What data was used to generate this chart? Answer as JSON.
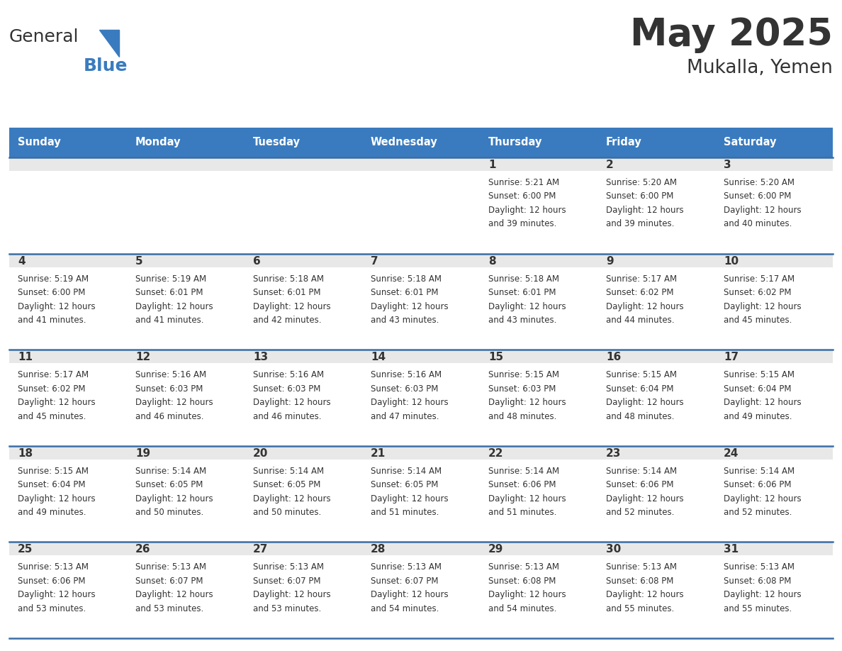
{
  "title": "May 2025",
  "subtitle": "Mukalla, Yemen",
  "days_of_week": [
    "Sunday",
    "Monday",
    "Tuesday",
    "Wednesday",
    "Thursday",
    "Friday",
    "Saturday"
  ],
  "header_bg": "#3a7bbf",
  "header_text": "#ffffff",
  "row_bg_light": "#e8e8e8",
  "row_bg_white": "#ffffff",
  "cell_text": "#333333",
  "divider_color": "#3a6ea5",
  "calendar_data": [
    [
      null,
      null,
      null,
      null,
      {
        "day": 1,
        "sunrise": "5:21 AM",
        "sunset": "6:00 PM",
        "daylight": "12 hours",
        "daylight2": "and 39 minutes."
      },
      {
        "day": 2,
        "sunrise": "5:20 AM",
        "sunset": "6:00 PM",
        "daylight": "12 hours",
        "daylight2": "and 39 minutes."
      },
      {
        "day": 3,
        "sunrise": "5:20 AM",
        "sunset": "6:00 PM",
        "daylight": "12 hours",
        "daylight2": "and 40 minutes."
      }
    ],
    [
      {
        "day": 4,
        "sunrise": "5:19 AM",
        "sunset": "6:00 PM",
        "daylight": "12 hours",
        "daylight2": "and 41 minutes."
      },
      {
        "day": 5,
        "sunrise": "5:19 AM",
        "sunset": "6:01 PM",
        "daylight": "12 hours",
        "daylight2": "and 41 minutes."
      },
      {
        "day": 6,
        "sunrise": "5:18 AM",
        "sunset": "6:01 PM",
        "daylight": "12 hours",
        "daylight2": "and 42 minutes."
      },
      {
        "day": 7,
        "sunrise": "5:18 AM",
        "sunset": "6:01 PM",
        "daylight": "12 hours",
        "daylight2": "and 43 minutes."
      },
      {
        "day": 8,
        "sunrise": "5:18 AM",
        "sunset": "6:01 PM",
        "daylight": "12 hours",
        "daylight2": "and 43 minutes."
      },
      {
        "day": 9,
        "sunrise": "5:17 AM",
        "sunset": "6:02 PM",
        "daylight": "12 hours",
        "daylight2": "and 44 minutes."
      },
      {
        "day": 10,
        "sunrise": "5:17 AM",
        "sunset": "6:02 PM",
        "daylight": "12 hours",
        "daylight2": "and 45 minutes."
      }
    ],
    [
      {
        "day": 11,
        "sunrise": "5:17 AM",
        "sunset": "6:02 PM",
        "daylight": "12 hours",
        "daylight2": "and 45 minutes."
      },
      {
        "day": 12,
        "sunrise": "5:16 AM",
        "sunset": "6:03 PM",
        "daylight": "12 hours",
        "daylight2": "and 46 minutes."
      },
      {
        "day": 13,
        "sunrise": "5:16 AM",
        "sunset": "6:03 PM",
        "daylight": "12 hours",
        "daylight2": "and 46 minutes."
      },
      {
        "day": 14,
        "sunrise": "5:16 AM",
        "sunset": "6:03 PM",
        "daylight": "12 hours",
        "daylight2": "and 47 minutes."
      },
      {
        "day": 15,
        "sunrise": "5:15 AM",
        "sunset": "6:03 PM",
        "daylight": "12 hours",
        "daylight2": "and 48 minutes."
      },
      {
        "day": 16,
        "sunrise": "5:15 AM",
        "sunset": "6:04 PM",
        "daylight": "12 hours",
        "daylight2": "and 48 minutes."
      },
      {
        "day": 17,
        "sunrise": "5:15 AM",
        "sunset": "6:04 PM",
        "daylight": "12 hours",
        "daylight2": "and 49 minutes."
      }
    ],
    [
      {
        "day": 18,
        "sunrise": "5:15 AM",
        "sunset": "6:04 PM",
        "daylight": "12 hours",
        "daylight2": "and 49 minutes."
      },
      {
        "day": 19,
        "sunrise": "5:14 AM",
        "sunset": "6:05 PM",
        "daylight": "12 hours",
        "daylight2": "and 50 minutes."
      },
      {
        "day": 20,
        "sunrise": "5:14 AM",
        "sunset": "6:05 PM",
        "daylight": "12 hours",
        "daylight2": "and 50 minutes."
      },
      {
        "day": 21,
        "sunrise": "5:14 AM",
        "sunset": "6:05 PM",
        "daylight": "12 hours",
        "daylight2": "and 51 minutes."
      },
      {
        "day": 22,
        "sunrise": "5:14 AM",
        "sunset": "6:06 PM",
        "daylight": "12 hours",
        "daylight2": "and 51 minutes."
      },
      {
        "day": 23,
        "sunrise": "5:14 AM",
        "sunset": "6:06 PM",
        "daylight": "12 hours",
        "daylight2": "and 52 minutes."
      },
      {
        "day": 24,
        "sunrise": "5:14 AM",
        "sunset": "6:06 PM",
        "daylight": "12 hours",
        "daylight2": "and 52 minutes."
      }
    ],
    [
      {
        "day": 25,
        "sunrise": "5:13 AM",
        "sunset": "6:06 PM",
        "daylight": "12 hours",
        "daylight2": "and 53 minutes."
      },
      {
        "day": 26,
        "sunrise": "5:13 AM",
        "sunset": "6:07 PM",
        "daylight": "12 hours",
        "daylight2": "and 53 minutes."
      },
      {
        "day": 27,
        "sunrise": "5:13 AM",
        "sunset": "6:07 PM",
        "daylight": "12 hours",
        "daylight2": "and 53 minutes."
      },
      {
        "day": 28,
        "sunrise": "5:13 AM",
        "sunset": "6:07 PM",
        "daylight": "12 hours",
        "daylight2": "and 54 minutes."
      },
      {
        "day": 29,
        "sunrise": "5:13 AM",
        "sunset": "6:08 PM",
        "daylight": "12 hours",
        "daylight2": "and 54 minutes."
      },
      {
        "day": 30,
        "sunrise": "5:13 AM",
        "sunset": "6:08 PM",
        "daylight": "12 hours",
        "daylight2": "and 55 minutes."
      },
      {
        "day": 31,
        "sunrise": "5:13 AM",
        "sunset": "6:08 PM",
        "daylight": "12 hours",
        "daylight2": "and 55 minutes."
      }
    ]
  ],
  "logo_general_color": "#333333",
  "logo_blue_color": "#3a7bbf"
}
